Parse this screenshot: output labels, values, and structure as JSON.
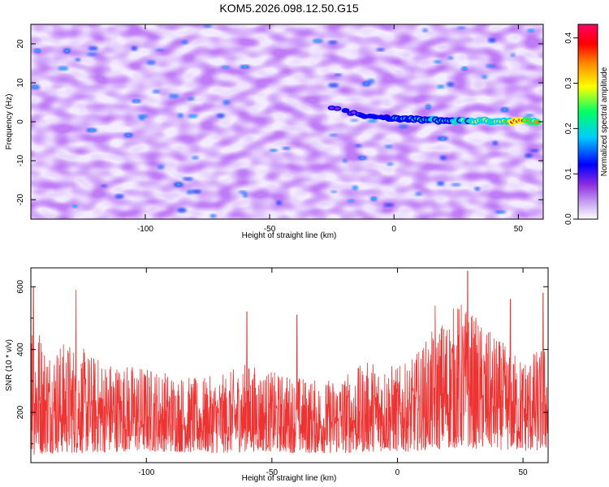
{
  "title": "KOM5.2026.098.12.50.G15",
  "chart_data": [
    {
      "type": "heatmap",
      "xlabel": "Height of straight line (km)",
      "ylabel": "Frequency (Hz)",
      "xlim": [
        -146,
        60
      ],
      "ylim": [
        -25,
        25
      ],
      "xticks": [
        -100,
        -50,
        0,
        50
      ],
      "xtick_labels": [
        "-100",
        "-50",
        "0",
        "50"
      ],
      "yticks": [
        -20,
        -10,
        0,
        10,
        20
      ],
      "ytick_labels": [
        "-20",
        "-10",
        "0",
        "10",
        "20"
      ],
      "colorbar": {
        "label": "Normalized spectral amplitude",
        "range": [
          0.0,
          0.43
        ],
        "ticks": [
          0.0,
          0.1,
          0.2,
          0.3,
          0.4
        ],
        "tick_labels": [
          "0.0",
          "0.1",
          "0.2",
          "0.3",
          "0.4"
        ],
        "colors": [
          "#ffffff",
          "#8a2be2",
          "#0000ff",
          "#00ffff",
          "#00ff00",
          "#ffff00",
          "#ff0000",
          "#ff00ff"
        ]
      },
      "background_level": 0.06,
      "signal_track": {
        "description_points": [
          [
            -25,
            3.5
          ],
          [
            -12,
            1.5
          ],
          [
            0,
            0.8
          ],
          [
            20,
            0.3
          ],
          [
            40,
            0.2
          ],
          [
            58,
            0.2
          ]
        ],
        "peak_amplitude": 0.43,
        "peak_height_km": 50
      }
    },
    {
      "type": "line",
      "xlabel": "Height of straight line (km)",
      "ylabel": "SNR (10 * v/v)",
      "xlim": [
        -146,
        60
      ],
      "ylim": [
        40,
        660
      ],
      "xticks": [
        -100,
        -50,
        0,
        50
      ],
      "xtick_labels": [
        "-100",
        "-50",
        "0",
        "50"
      ],
      "yticks": [
        200,
        400,
        600
      ],
      "ytick_labels": [
        "200",
        "400",
        "600"
      ],
      "series": [
        {
          "color": "#ee3333",
          "envelope": {
            "x": [
              -146,
              -140,
              -130,
              -120,
              -110,
              -100,
              -90,
              -80,
              -70,
              -60,
              -50,
              -40,
              -30,
              -20,
              -10,
              0,
              5,
              10,
              15,
              20,
              25,
              30,
              35,
              40,
              45,
              50,
              55,
              60
            ],
            "upper": [
              560,
              420,
              430,
              380,
              360,
              350,
              330,
              310,
              320,
              360,
              330,
              320,
              300,
              330,
              370,
              350,
              360,
              420,
              470,
              520,
              560,
              520,
              470,
              440,
              400,
              380,
              400,
              420
            ],
            "lower": [
              60,
              70,
              70,
              70,
              75,
              75,
              75,
              70,
              70,
              75,
              75,
              70,
              70,
              70,
              75,
              75,
              75,
              80,
              80,
              85,
              85,
              85,
              80,
              80,
              80,
              75,
              75,
              80
            ]
          },
          "peaks": [
            [
              -145,
              600
            ],
            [
              -128,
              590
            ],
            [
              -60,
              520
            ],
            [
              -40,
              510
            ],
            [
              15,
              540
            ],
            [
              28,
              650
            ],
            [
              45,
              560
            ],
            [
              58,
              580
            ]
          ]
        }
      ]
    }
  ]
}
